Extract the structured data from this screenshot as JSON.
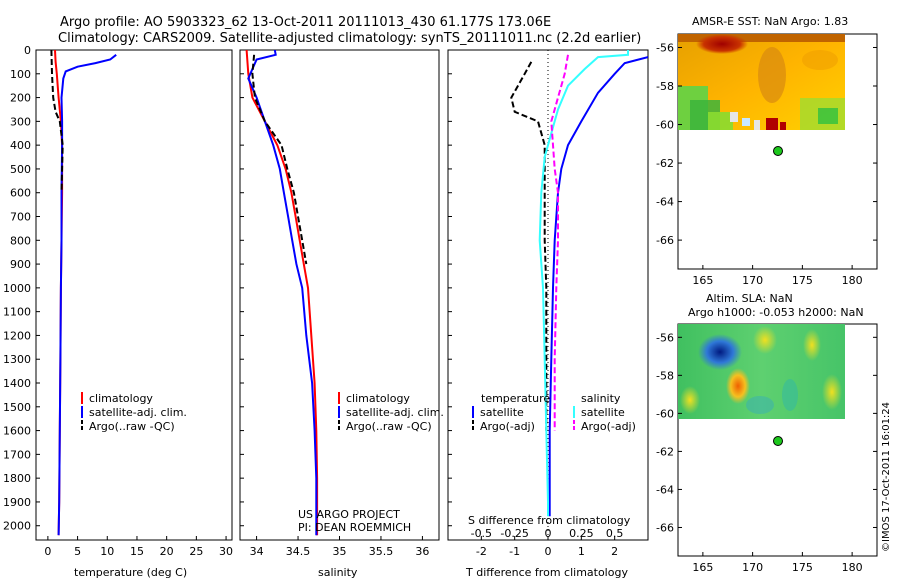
{
  "header": {
    "line1": "Argo profile: AO 5903323_62 13-Oct-2011 20111013_430 61.177S 173.06E",
    "line2": "Climatology: CARS2009. Satellite-adjusted climatology: synTS_20111011.nc (2.2d earlier)"
  },
  "colors": {
    "climatology": "#ff0000",
    "satellite": "#0000ff",
    "argo": "#000000",
    "salinity_sat": "#33ffff",
    "salinity_argo": "#ff00ff"
  },
  "depth_ticks": [
    "0",
    "100",
    "200",
    "300",
    "400",
    "500",
    "600",
    "700",
    "800",
    "900",
    "1000",
    "1100",
    "1200",
    "1300",
    "1400",
    "1500",
    "1600",
    "1700",
    "1800",
    "1900",
    "2000"
  ],
  "chart_data": [
    {
      "type": "line",
      "xlabel": "temperature (deg C)",
      "xlim": [
        -2,
        31
      ],
      "ylim": [
        2060,
        0
      ],
      "xticks": [
        "0",
        "5",
        "10",
        "15",
        "20",
        "25",
        "30"
      ],
      "legend": [
        "climatology",
        "satellite-adj. clim.",
        "Argo(..raw -QC)"
      ],
      "series": [
        {
          "name": "climatology",
          "values": [
            [
              1.2,
              0
            ],
            [
              1.3,
              50
            ],
            [
              1.5,
              100
            ],
            [
              1.8,
              200
            ],
            [
              2.2,
              300
            ],
            [
              2.4,
              400
            ],
            [
              2.4,
              600
            ],
            [
              2.3,
              800
            ],
            [
              2.2,
              1000
            ],
            [
              2.1,
              1300
            ],
            [
              2.0,
              1600
            ],
            [
              1.9,
              1900
            ],
            [
              1.8,
              2040
            ]
          ]
        },
        {
          "name": "satellite-adj. clim.",
          "values": [
            [
              11.5,
              20
            ],
            [
              10.5,
              40
            ],
            [
              8,
              55
            ],
            [
              5,
              70
            ],
            [
              3,
              90
            ],
            [
              2.6,
              120
            ],
            [
              2.3,
              200
            ],
            [
              2.4,
              300
            ],
            [
              2.4,
              400
            ],
            [
              2.3,
              600
            ],
            [
              2.3,
              800
            ],
            [
              2.2,
              1000
            ],
            [
              2.1,
              1300
            ],
            [
              2.0,
              1600
            ],
            [
              1.9,
              1900
            ],
            [
              1.8,
              2040
            ]
          ]
        },
        {
          "name": "Argo(..raw -QC)",
          "values": [
            [
              0.6,
              0
            ],
            [
              0.7,
              100
            ],
            [
              0.9,
              200
            ],
            [
              1.3,
              260
            ],
            [
              2.0,
              300
            ],
            [
              2.5,
              400
            ],
            [
              2.4,
              500
            ],
            [
              2.3,
              600
            ]
          ]
        }
      ]
    },
    {
      "type": "line",
      "xlabel": "salinity",
      "xlim": [
        33.8,
        36.2
      ],
      "ylim": [
        2060,
        0
      ],
      "xticks": [
        "34",
        "34.5",
        "35",
        "35.5",
        "36"
      ],
      "legend": [
        "climatology",
        "satellite-adj. clim.",
        "Argo(..raw -QC)"
      ],
      "annotations": [
        "US ARGO PROJECT",
        "PI: DEAN ROEMMICH"
      ],
      "series": [
        {
          "name": "climatology",
          "values": [
            [
              33.88,
              0
            ],
            [
              33.9,
              100
            ],
            [
              33.95,
              200
            ],
            [
              34.1,
              300
            ],
            [
              34.25,
              400
            ],
            [
              34.35,
              500
            ],
            [
              34.42,
              600
            ],
            [
              34.47,
              700
            ],
            [
              34.52,
              800
            ],
            [
              34.57,
              900
            ],
            [
              34.62,
              1000
            ],
            [
              34.66,
              1200
            ],
            [
              34.7,
              1400
            ],
            [
              34.72,
              1600
            ],
            [
              34.73,
              1800
            ],
            [
              34.73,
              2040
            ]
          ]
        },
        {
          "name": "satellite-adj. clim.",
          "values": [
            [
              34.22,
              0
            ],
            [
              34.23,
              20
            ],
            [
              34.0,
              40
            ],
            [
              33.95,
              80
            ],
            [
              33.9,
              120
            ],
            [
              34.0,
              200
            ],
            [
              34.1,
              300
            ],
            [
              34.2,
              400
            ],
            [
              34.28,
              500
            ],
            [
              34.33,
              600
            ],
            [
              34.38,
              700
            ],
            [
              34.43,
              800
            ],
            [
              34.48,
              900
            ],
            [
              34.55,
              1000
            ],
            [
              34.6,
              1200
            ],
            [
              34.67,
              1400
            ],
            [
              34.7,
              1600
            ],
            [
              34.72,
              1800
            ],
            [
              34.72,
              2040
            ]
          ]
        },
        {
          "name": "Argo(..raw -QC)",
          "values": [
            [
              33.97,
              20
            ],
            [
              33.95,
              100
            ],
            [
              33.98,
              200
            ],
            [
              34.1,
              300
            ],
            [
              34.3,
              400
            ],
            [
              34.37,
              500
            ],
            [
              34.45,
              600
            ],
            [
              34.5,
              700
            ],
            [
              34.55,
              800
            ],
            [
              34.6,
              900
            ]
          ]
        }
      ]
    },
    {
      "type": "line",
      "xlabel": "T difference from climatology",
      "xlabel_top": "S difference from climatology",
      "xlim": [
        -3,
        3
      ],
      "ylim": [
        2060,
        0
      ],
      "xticks": [
        "-2",
        "-1",
        "0",
        "1",
        "2"
      ],
      "xticks_top": [
        "-0.5",
        "-0.25",
        "0",
        "0.25",
        "0.5"
      ],
      "legend": {
        "temperature": [
          "satellite",
          "Argo(-adj)"
        ],
        "salinity": [
          "satellite",
          "Argo(-adj)"
        ]
      },
      "series": [
        {
          "name": "temperature satellite",
          "values": [
            [
              3.0,
              30
            ],
            [
              2.3,
              55
            ],
            [
              2.0,
              100
            ],
            [
              1.5,
              180
            ],
            [
              1.0,
              300
            ],
            [
              0.6,
              400
            ],
            [
              0.4,
              500
            ],
            [
              0.3,
              600
            ],
            [
              0.2,
              800
            ],
            [
              0.15,
              1000
            ],
            [
              0.1,
              1300
            ],
            [
              0.05,
              1600
            ],
            [
              0.05,
              1900
            ],
            [
              0.05,
              1960
            ]
          ]
        },
        {
          "name": "temperature Argo(-adj)",
          "values": [
            [
              -0.5,
              50
            ],
            [
              -0.7,
              100
            ],
            [
              -1.1,
              200
            ],
            [
              -1.0,
              260
            ],
            [
              -0.3,
              300
            ],
            [
              -0.1,
              400
            ],
            [
              -0.1,
              500
            ],
            [
              -0.1,
              600
            ],
            [
              -0.1,
              800
            ],
            [
              -0.05,
              1000
            ],
            [
              -0.05,
              1300
            ],
            [
              -0.05,
              1600
            ]
          ]
        },
        {
          "name": "salinity satellite",
          "values": [
            [
              2.4,
              0
            ],
            [
              2.4,
              20
            ],
            [
              1.5,
              30
            ],
            [
              1.1,
              80
            ],
            [
              0.6,
              150
            ],
            [
              0.3,
              250
            ],
            [
              0.1,
              350
            ],
            [
              -0.1,
              450
            ],
            [
              -0.2,
              600
            ],
            [
              -0.25,
              800
            ],
            [
              -0.15,
              1000
            ],
            [
              -0.1,
              1300
            ],
            [
              -0.05,
              1600
            ],
            [
              0,
              1900
            ],
            [
              0,
              1960
            ]
          ]
        },
        {
          "name": "salinity Argo(-adj)",
          "values": [
            [
              0.6,
              20
            ],
            [
              0.5,
              100
            ],
            [
              0.3,
              200
            ],
            [
              0.1,
              300
            ],
            [
              0.2,
              500
            ],
            [
              0.3,
              600
            ],
            [
              0.3,
              800
            ],
            [
              0.25,
              1000
            ],
            [
              0.2,
              1300
            ],
            [
              0.2,
              1600
            ]
          ]
        }
      ]
    },
    {
      "type": "heatmap",
      "title": "AMSR-E SST: NaN Argo: 1.83",
      "xticks": [
        "165",
        "170",
        "175",
        "180"
      ],
      "yticks": [
        "-56",
        "-58",
        "-60",
        "-62",
        "-64",
        "-66"
      ],
      "marker": {
        "lon": 173.06,
        "lat": -61.18
      }
    },
    {
      "type": "heatmap",
      "title_line1": "Altim. SLA: NaN",
      "title_line2": "Argo h1000: -0.053 h2000: NaN",
      "xticks": [
        "165",
        "170",
        "175",
        "180"
      ],
      "yticks": [
        "-56",
        "-58",
        "-60",
        "-62",
        "-64",
        "-66"
      ],
      "marker": {
        "lon": 173.06,
        "lat": -61.18
      }
    }
  ],
  "credit": "©IMOS 17-Oct-2011 16:01:24"
}
